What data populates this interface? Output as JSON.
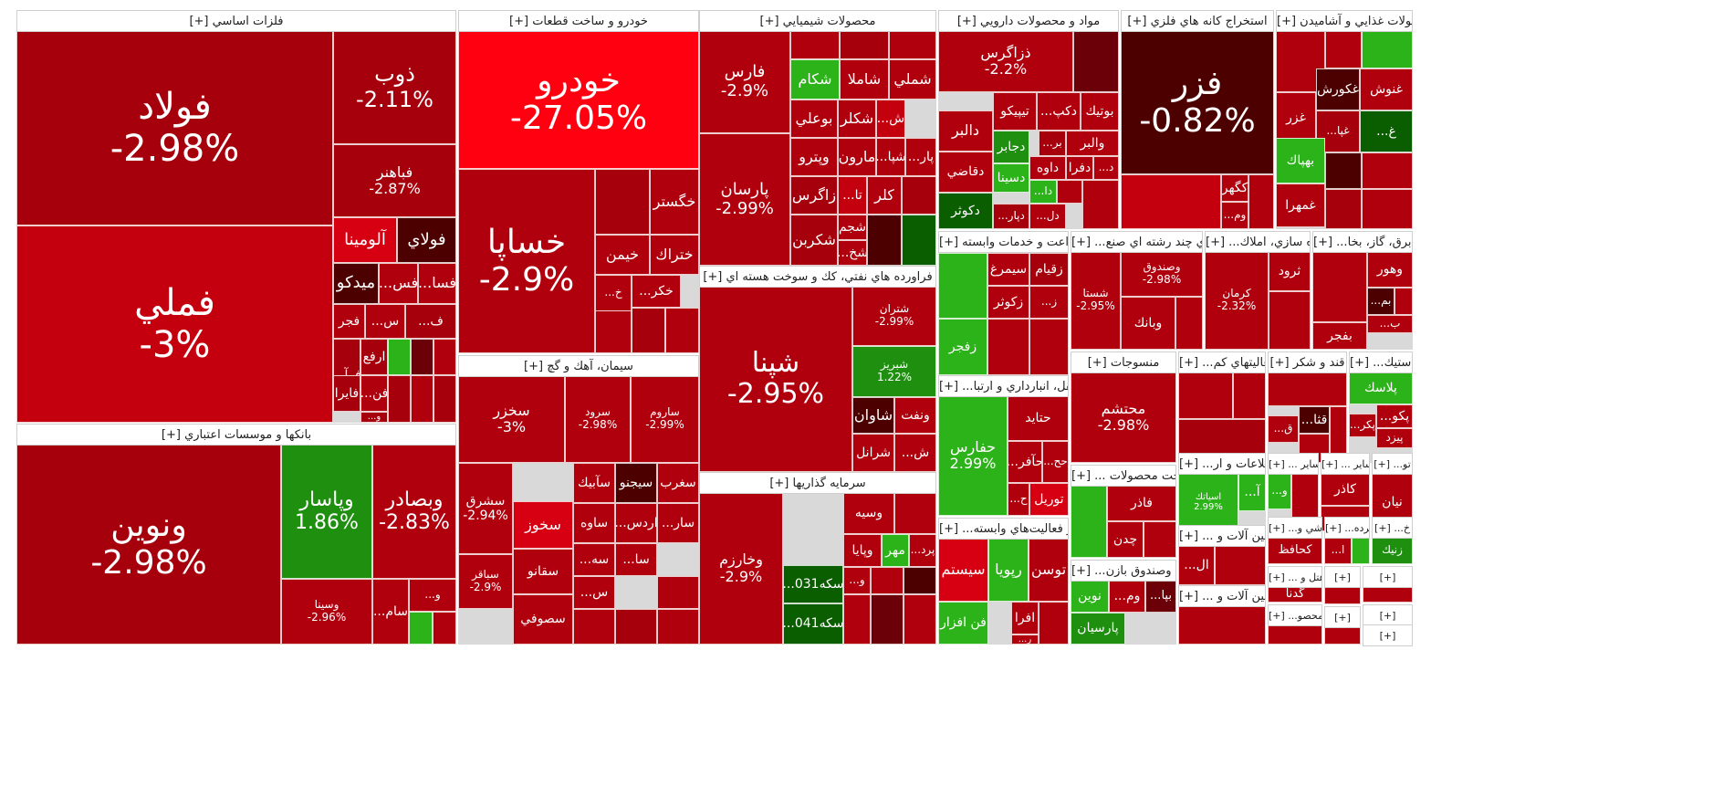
{
  "colors": {
    "red1": "#b0000e",
    "red2": "#a5000c",
    "red3": "#c4000f",
    "red4": "#d60012",
    "red_bright": "#ff0010",
    "red_mid": "#9b0a0f",
    "dark": "#4d0000",
    "dark2": "#6b0008",
    "green": "#2db31a",
    "green_mid": "#1f8f10",
    "green_dark": "#0b5e00"
  },
  "sectors": [
    {
      "name": "[+] فلزات اساسي",
      "tiles": [
        {
          "name": "فولاد",
          "pct": "-2.98%"
        },
        {
          "name": "فملي",
          "pct": "-3%"
        },
        {
          "name": "ذوب",
          "pct": "-2.11%"
        },
        {
          "name": "فباهنر",
          "pct": "-2.87%"
        },
        {
          "name": "آلومينا",
          "pct": ""
        },
        {
          "name": "فولاي",
          "pct": ""
        },
        {
          "name": "ميدكو",
          "pct": ""
        },
        {
          "name": "...فس",
          "pct": ""
        },
        {
          "name": "...فسا",
          "pct": ""
        },
        {
          "name": "فجر",
          "pct": ""
        },
        {
          "name": "...س",
          "pct": ""
        },
        {
          "name": "...ف",
          "pct": ""
        },
        {
          "name": "...فرآ",
          "pct": ""
        },
        {
          "name": "ارفع",
          "pct": ""
        },
        {
          "name": "فايرا",
          "pct": ""
        },
        {
          "name": "...فن",
          "pct": ""
        },
        {
          "name": "...و",
          "pct": ""
        }
      ]
    },
    {
      "name": "[+] خودرو و ساخت قطعات",
      "tiles": [
        {
          "name": "خودرو",
          "pct": "-27.05%"
        },
        {
          "name": "خساپا",
          "pct": "-2.9%"
        },
        {
          "name": "خگستر",
          "pct": ""
        },
        {
          "name": "خيمن",
          "pct": ""
        },
        {
          "name": "ختراك",
          "pct": ""
        },
        {
          "name": "...خكر",
          "pct": ""
        },
        {
          "name": "...خ",
          "pct": ""
        }
      ]
    },
    {
      "name": "[+] محصولات شيميايي",
      "tiles": [
        {
          "name": "فارس",
          "pct": "-2.9%"
        },
        {
          "name": "پارسان",
          "pct": "-2.99%"
        },
        {
          "name": "شكام",
          "pct": ""
        },
        {
          "name": "شاملا",
          "pct": ""
        },
        {
          "name": "شملي",
          "pct": ""
        },
        {
          "name": "بوعلي",
          "pct": ""
        },
        {
          "name": "شكلر",
          "pct": ""
        },
        {
          "name": "...ش",
          "pct": ""
        },
        {
          "name": "وپترو",
          "pct": ""
        },
        {
          "name": "مارون",
          "pct": ""
        },
        {
          "name": "...شپا",
          "pct": ""
        },
        {
          "name": "...پار",
          "pct": ""
        },
        {
          "name": "زاگرس",
          "pct": ""
        },
        {
          "name": "...تا",
          "pct": ""
        },
        {
          "name": "كلر",
          "pct": ""
        },
        {
          "name": "شكربن",
          "pct": ""
        },
        {
          "name": "شجم",
          "pct": ""
        },
        {
          "name": "...شخ",
          "pct": ""
        }
      ]
    },
    {
      "name": "[+] مواد و محصولات دارويي",
      "tiles": [
        {
          "name": "ذزاگرس",
          "pct": "-2.2%"
        },
        {
          "name": "بوتيك",
          "pct": ""
        },
        {
          "name": "...دكپ",
          "pct": ""
        },
        {
          "name": "تيپيكو",
          "pct": ""
        },
        {
          "name": "دالبر",
          "pct": ""
        },
        {
          "name": "والبر",
          "pct": ""
        },
        {
          "name": "...بر",
          "pct": ""
        },
        {
          "name": "...د",
          "pct": ""
        },
        {
          "name": "دجابر",
          "pct": ""
        },
        {
          "name": "دقاضي",
          "pct": ""
        },
        {
          "name": "دفرا",
          "pct": ""
        },
        {
          "name": "داوه",
          "pct": ""
        },
        {
          "name": "دسينا",
          "pct": ""
        },
        {
          "name": "...دا",
          "pct": ""
        },
        {
          "name": "دكوثر",
          "pct": ""
        },
        {
          "name": "...دپار",
          "pct": ""
        },
        {
          "name": "...دل",
          "pct": ""
        }
      ]
    },
    {
      "name": "[+] استخراج كانه هاي فلزي",
      "tiles": [
        {
          "name": "فزر",
          "pct": "-0.82%"
        },
        {
          "name": "كگهر",
          "pct": ""
        },
        {
          "name": "...وم",
          "pct": ""
        }
      ]
    },
    {
      "name": "[+] محصولات غذايي و آشاميدن",
      "tiles": [
        {
          "name": "غنوش",
          "pct": ""
        },
        {
          "name": "غكورش",
          "pct": ""
        },
        {
          "name": "غزر",
          "pct": ""
        },
        {
          "name": "...غد",
          "pct": ""
        },
        {
          "name": "...غپا",
          "pct": ""
        },
        {
          "name": "...غ",
          "pct": ""
        },
        {
          "name": "بهپاك",
          "pct": ""
        },
        {
          "name": "غمهرا",
          "pct": ""
        }
      ]
    },
    {
      "name": "[+] بانكها و موسسات اعتباري",
      "tiles": [
        {
          "name": "ونوين",
          "pct": "-2.98%"
        },
        {
          "name": "وپاسار",
          "pct": "1.86%"
        },
        {
          "name": "وبصادر",
          "pct": "-2.83%"
        },
        {
          "name": "وسينا",
          "pct": "-2.96%"
        },
        {
          "name": "...سام",
          "pct": ""
        },
        {
          "name": "...و",
          "pct": ""
        }
      ]
    },
    {
      "name": "[+] سيمان، آهك و گچ",
      "tiles": [
        {
          "name": "سخزر",
          "pct": "-3%"
        },
        {
          "name": "سرود",
          "pct": "-2.98%"
        },
        {
          "name": "ساروم",
          "pct": "-2.99%"
        },
        {
          "name": "سشرق",
          "pct": "-2.94%"
        },
        {
          "name": "سآبيك",
          "pct": ""
        },
        {
          "name": "سيجنو",
          "pct": ""
        },
        {
          "name": "سغرب",
          "pct": ""
        },
        {
          "name": "سخوز",
          "pct": ""
        },
        {
          "name": "ساوه",
          "pct": ""
        },
        {
          "name": "...اردس",
          "pct": ""
        },
        {
          "name": "...سار",
          "pct": ""
        },
        {
          "name": "سقانو",
          "pct": ""
        },
        {
          "name": "سباقر",
          "pct": "-2.9%"
        },
        {
          "name": "سصوفي",
          "pct": ""
        },
        {
          "name": "...سه",
          "pct": ""
        },
        {
          "name": "...سا",
          "pct": ""
        },
        {
          "name": "...س",
          "pct": ""
        }
      ]
    },
    {
      "name": "[+] فراورده هاي نفتي، كك و سوخت هسته اي",
      "tiles": [
        {
          "name": "شپنا",
          "pct": "-2.95%"
        },
        {
          "name": "شتران",
          "pct": "-2.99%"
        },
        {
          "name": "شبريز",
          "pct": "1.22%"
        },
        {
          "name": "شاوان",
          "pct": ""
        },
        {
          "name": "ونفت",
          "pct": ""
        },
        {
          "name": "شرانل",
          "pct": ""
        },
        {
          "name": "...ش",
          "pct": ""
        }
      ]
    },
    {
      "name": "[+] سرمايه گذاريها",
      "tiles": [
        {
          "name": "وخارزم",
          "pct": "-2.9%"
        },
        {
          "name": "وسيه",
          "pct": ""
        },
        {
          "name": "وپايا",
          "pct": ""
        },
        {
          "name": "مهر",
          "pct": ""
        },
        {
          "name": "...پرد",
          "pct": ""
        },
        {
          "name": "...سكه031",
          "pct": ""
        },
        {
          "name": "...سكه041",
          "pct": ""
        },
        {
          "name": "...و",
          "pct": ""
        }
      ]
    },
    {
      "name": "[+] زراعت و خدمات وابسته",
      "tiles": [
        {
          "name": "زقيام",
          "pct": ""
        },
        {
          "name": "سيمرغ",
          "pct": ""
        },
        {
          "name": "زكوثر",
          "pct": ""
        },
        {
          "name": "زفجر",
          "pct": ""
        },
        {
          "name": "...ز",
          "pct": ""
        }
      ]
    },
    {
      "name": "[+] ...حمل ونقل، انبارداري و ارتبا",
      "tiles": [
        {
          "name": "حفارس",
          "pct": "2.99%"
        },
        {
          "name": "حتايد",
          "pct": ""
        },
        {
          "name": "...حآفر",
          "pct": ""
        },
        {
          "name": "...حح",
          "pct": ""
        },
        {
          "name": "توريل",
          "pct": ""
        },
        {
          "name": "...ح",
          "pct": ""
        }
      ]
    },
    {
      "name": "[+] ...رايانه و فعاليت‌هاي وابسته",
      "tiles": [
        {
          "name": "سيستم",
          "pct": ""
        },
        {
          "name": "رپويا",
          "pct": ""
        },
        {
          "name": "توسن",
          "pct": ""
        },
        {
          "name": "فن افزار",
          "pct": ""
        },
        {
          "name": "افرا",
          "pct": ""
        },
        {
          "name": "...ر",
          "pct": ""
        }
      ]
    },
    {
      "name": "[+] ...شركتهاي چند رشته اي صنع",
      "tiles": [
        {
          "name": "شستا",
          "pct": "-2.95%"
        },
        {
          "name": "وصندوق",
          "pct": "-2.98%"
        },
        {
          "name": "وبانك",
          "pct": ""
        }
      ]
    },
    {
      "name": "[+] ...انبوه سازي، املاك",
      "tiles": [
        {
          "name": "كرمان",
          "pct": "-2.32%"
        },
        {
          "name": "ثرود",
          "pct": ""
        }
      ]
    },
    {
      "name": "[+] ...عرضه برق، گاز، بخا",
      "tiles": [
        {
          "name": "وهور",
          "pct": ""
        },
        {
          "name": "...بم",
          "pct": ""
        },
        {
          "name": "...ب",
          "pct": ""
        },
        {
          "name": "بفجر",
          "pct": ""
        }
      ]
    },
    {
      "name": "[+] منسوجات",
      "tiles": [
        {
          "name": "محتشم",
          "pct": "-2.98%"
        }
      ]
    },
    {
      "name": "[+] ...فعاليتهاي كم",
      "tiles": []
    },
    {
      "name": "[+] قند و شكر",
      "tiles": [
        {
          "name": "...قثا",
          "pct": ""
        },
        {
          "name": "...ق",
          "pct": ""
        }
      ]
    },
    {
      "name": "[+] ...لاستيك",
      "tiles": [
        {
          "name": "پلاسك",
          "pct": ""
        },
        {
          "name": "...پكو",
          "pct": ""
        },
        {
          "name": "...پكر",
          "pct": ""
        },
        {
          "name": "پيزد",
          "pct": ""
        }
      ]
    },
    {
      "name": "[+] ... ساخت محصولات",
      "tiles": [
        {
          "name": "فاذر",
          "pct": ""
        },
        {
          "name": "چدن",
          "pct": ""
        }
      ]
    },
    {
      "name": "[+] ...اطلاعات و ار",
      "tiles": [
        {
          "name": "...آ",
          "pct": ""
        },
        {
          "name": "اسياتك",
          "pct": "2.99%"
        }
      ]
    },
    {
      "name": "[+] ... ساير",
      "tiles": [
        {
          "name": "...و",
          "pct": ""
        }
      ]
    },
    {
      "name": "[+] ... ساير",
      "tiles": [
        {
          "name": "كاذر",
          "pct": ""
        }
      ]
    },
    {
      "name": "[+] ...تو",
      "tiles": [
        {
          "name": "نيان",
          "pct": ""
        }
      ]
    },
    {
      "name": "[+] ... ماشين آلات و",
      "tiles": [
        {
          "name": "...ال",
          "pct": ""
        }
      ]
    },
    {
      "name": "[+] ...كاشي و",
      "tiles": [
        {
          "name": "كحافظ",
          "pct": ""
        }
      ]
    },
    {
      "name": "[+] ...خرده",
      "tiles": [
        {
          "name": "...ا",
          "pct": ""
        }
      ]
    },
    {
      "name": "[+] ...خ",
      "tiles": [
        {
          "name": "زنيك",
          "pct": ""
        }
      ]
    },
    {
      "name": "[+] ...بيمه وصندوق بازن",
      "tiles": [
        {
          "name": "نوين",
          "pct": ""
        },
        {
          "name": "...وم",
          "pct": ""
        },
        {
          "name": "...بپا",
          "pct": ""
        },
        {
          "name": "پارسيان",
          "pct": ""
        }
      ]
    },
    {
      "name": "[+] ... ماشين آلات و",
      "tiles": []
    },
    {
      "name": "[+] ... هتل و",
      "tiles": [
        {
          "name": "گدنا",
          "pct": ""
        }
      ]
    },
    {
      "name": "[+] ...محصو",
      "tiles": []
    },
    {
      "name": "[+]",
      "tiles": []
    },
    {
      "name": "[+]",
      "tiles": []
    },
    {
      "name": "[+]",
      "tiles": []
    },
    {
      "name": "[+]",
      "tiles": []
    },
    {
      "name": "[+]",
      "tiles": []
    }
  ]
}
